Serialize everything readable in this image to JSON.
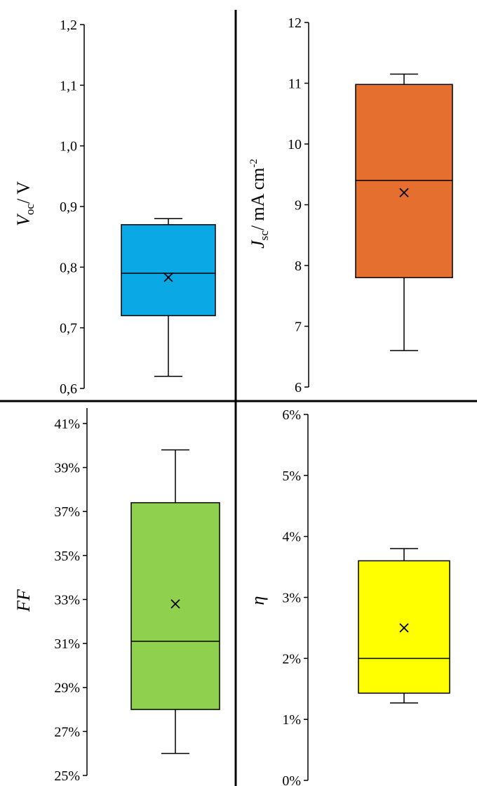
{
  "chart_data": [
    {
      "type": "box",
      "ylabel": "Voc / V",
      "ylim": [
        0.6,
        1.2
      ],
      "yticks": [
        "0,6",
        "0,7",
        "0,8",
        "0,9",
        "1,0",
        "1,1",
        "1,2"
      ],
      "fill": "#0aa9e6",
      "box": {
        "min": 0.62,
        "q1": 0.72,
        "median": 0.79,
        "mean": 0.783,
        "q3": 0.87,
        "max": 0.88
      }
    },
    {
      "type": "box",
      "ylabel": "Jsc / mA cm-2",
      "ylim": [
        6,
        12
      ],
      "yticks": [
        "6",
        "7",
        "8",
        "9",
        "10",
        "11",
        "12"
      ],
      "fill": "#e46f2f",
      "box": {
        "min": 6.6,
        "q1": 7.8,
        "median": 9.4,
        "mean": 9.2,
        "q3": 10.98,
        "max": 11.15
      }
    },
    {
      "type": "box",
      "ylabel": "FF",
      "ylim": [
        25,
        41.7
      ],
      "yticks": [
        "25%",
        "27%",
        "29%",
        "31%",
        "33%",
        "35%",
        "37%",
        "39%",
        "41%"
      ],
      "fill": "#8fd14f",
      "box": {
        "min": 26.0,
        "q1": 28.0,
        "median": 31.1,
        "mean": 32.8,
        "q3": 37.4,
        "max": 39.8
      }
    },
    {
      "type": "box",
      "ylabel": "η",
      "ylim": [
        0,
        6
      ],
      "yticks": [
        "0%",
        "1%",
        "2%",
        "3%",
        "4%",
        "5%",
        "6%"
      ],
      "fill": "#ffff00",
      "box": {
        "min": 1.27,
        "q1": 1.43,
        "median": 2.0,
        "mean": 2.5,
        "q3": 3.6,
        "max": 3.8
      }
    }
  ]
}
